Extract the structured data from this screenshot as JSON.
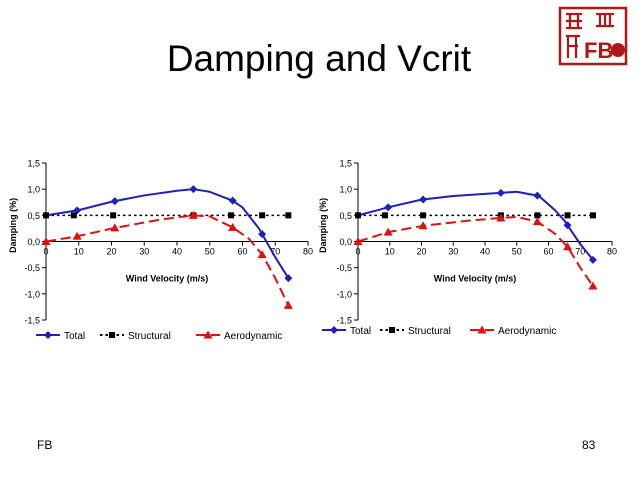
{
  "slide": {
    "title": "Damping and Vcrit",
    "footer_left": "FB",
    "page_number": "83",
    "seal_text": "FB"
  },
  "colors": {
    "total": "#1f1fbf",
    "structural": "#000000",
    "aerodynamic": "#e01010",
    "seal": "#b01818"
  },
  "chart_data": [
    {
      "type": "line",
      "title": "",
      "xlabel": "Wind Velocity (m/s)",
      "ylabel": "Damping (%)",
      "xlim": [
        0,
        80
      ],
      "ylim": [
        -1.5,
        1.5
      ],
      "x_ticks": [
        0,
        10,
        20,
        30,
        40,
        50,
        60,
        70,
        80
      ],
      "x_tick_labels": [
        "0",
        "10",
        "20",
        "30",
        "40",
        "50",
        "60",
        "70",
        "80"
      ],
      "y_ticks": [
        1.5,
        1.0,
        0.5,
        0.0,
        -0.5,
        -1.0,
        -1.5
      ],
      "y_tick_labels": [
        "1,5",
        "1,0",
        "0,5",
        "0,0",
        "-0,5",
        "-1,0",
        "-1,5"
      ],
      "legend_position": "bottom",
      "series": [
        {
          "name": "Total",
          "key": "total",
          "marker": "diamond",
          "dash": "solid",
          "x": [
            0,
            10,
            20,
            30,
            40,
            45,
            50,
            57,
            60,
            65,
            70,
            74
          ],
          "y": [
            0.5,
            0.6,
            0.76,
            0.88,
            0.97,
            1.0,
            0.95,
            0.78,
            0.65,
            0.25,
            -0.3,
            -0.7
          ],
          "marker_x": [
            0,
            9.5,
            21,
            45,
            57,
            66,
            74
          ]
        },
        {
          "name": "Structural",
          "key": "structural",
          "marker": "square",
          "dash": "dotted",
          "x": [
            0,
            8.5,
            20.5,
            45,
            56.5,
            66,
            74
          ],
          "y": [
            0.5,
            0.5,
            0.5,
            0.5,
            0.5,
            0.5,
            0.5
          ],
          "marker_x": [
            0,
            8.5,
            20.5,
            45,
            56.5,
            66,
            74
          ]
        },
        {
          "name": "Aerodynamic",
          "key": "aerodynamic",
          "marker": "triangle",
          "dash": "dashed",
          "x": [
            0,
            9.5,
            21,
            35,
            45,
            50,
            57,
            62,
            66,
            70,
            74
          ],
          "y": [
            0.0,
            0.1,
            0.26,
            0.42,
            0.5,
            0.48,
            0.27,
            0.05,
            -0.25,
            -0.7,
            -1.22
          ],
          "marker_x": [
            0,
            9.5,
            21,
            45,
            57,
            66,
            74
          ]
        }
      ]
    },
    {
      "type": "line",
      "title": "",
      "xlabel": "Wind Velocity (m/s)",
      "ylabel": "Damping (%)",
      "xlim": [
        0,
        80
      ],
      "ylim": [
        -1.5,
        1.5
      ],
      "x_ticks": [
        0,
        10,
        20,
        30,
        40,
        50,
        60,
        70,
        80
      ],
      "x_tick_labels": [
        "0",
        "10",
        "20",
        "30",
        "40",
        "50",
        "60",
        "70",
        "80"
      ],
      "y_ticks": [
        1.5,
        1.0,
        0.5,
        0.0,
        -0.5,
        -1.0,
        -1.5
      ],
      "y_tick_labels": [
        "1,5",
        "1,0",
        "0,5",
        "0,0",
        "-0,5",
        "-1,0",
        "-1,5"
      ],
      "legend_position": "bottom",
      "series": [
        {
          "name": "Total",
          "key": "total",
          "marker": "diamond",
          "dash": "solid",
          "x": [
            0,
            10,
            20,
            30,
            40,
            45,
            50,
            57,
            62,
            65,
            70,
            74
          ],
          "y": [
            0.5,
            0.66,
            0.8,
            0.87,
            0.91,
            0.93,
            0.95,
            0.87,
            0.6,
            0.4,
            -0.05,
            -0.35
          ],
          "marker_x": [
            0,
            9.5,
            20.5,
            45,
            56.5,
            66,
            74
          ]
        },
        {
          "name": "Structural",
          "key": "structural",
          "marker": "square",
          "dash": "dotted",
          "x": [
            0,
            8.5,
            20.5,
            45,
            56.5,
            66,
            74
          ],
          "y": [
            0.5,
            0.5,
            0.5,
            0.5,
            0.5,
            0.5,
            0.5
          ],
          "marker_x": [
            0,
            8.5,
            20.5,
            45,
            56.5,
            66,
            74
          ]
        },
        {
          "name": "Aerodynamic",
          "key": "aerodynamic",
          "marker": "triangle",
          "dash": "dashed",
          "x": [
            0,
            9.5,
            20.5,
            35,
            45,
            50,
            56.5,
            62,
            66,
            70,
            74
          ],
          "y": [
            0.0,
            0.18,
            0.3,
            0.4,
            0.45,
            0.47,
            0.38,
            0.15,
            -0.1,
            -0.5,
            -0.85
          ],
          "marker_x": [
            0,
            9.5,
            20.5,
            45,
            56.5,
            66,
            74
          ]
        }
      ]
    }
  ]
}
